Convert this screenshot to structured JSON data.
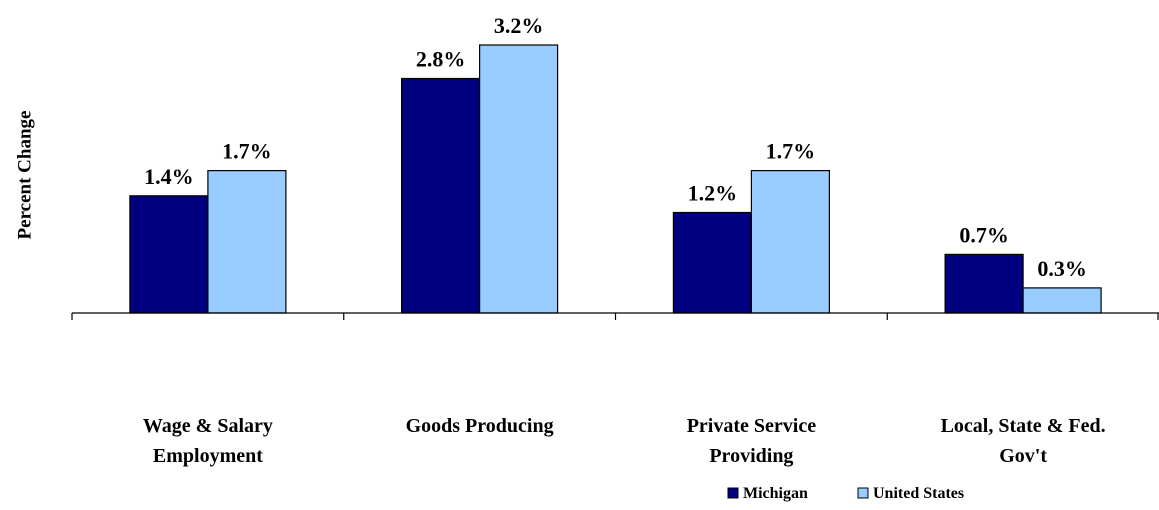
{
  "chart_data": {
    "type": "bar",
    "title": "",
    "xlabel": "",
    "ylabel": "Percent Change",
    "ylim": [
      0,
      3.2
    ],
    "grid": false,
    "legend_position": "bottom-right",
    "categories": [
      [
        "Wage & Salary",
        "Employment"
      ],
      [
        "Goods Producing"
      ],
      [
        "Private Service",
        "Providing"
      ],
      [
        "Local, State & Fed.",
        "Gov't"
      ]
    ],
    "series": [
      {
        "name": "Michigan",
        "color": "#000080",
        "values": [
          1.4,
          2.8,
          1.2,
          0.7
        ],
        "labels": [
          "1.4%",
          "2.8%",
          "1.2%",
          "0.7%"
        ]
      },
      {
        "name": "United States",
        "color": "#99ccff",
        "values": [
          1.7,
          3.2,
          1.7,
          0.3
        ],
        "labels": [
          "1.7%",
          "3.2%",
          "1.7%",
          "0.3%"
        ]
      }
    ]
  }
}
